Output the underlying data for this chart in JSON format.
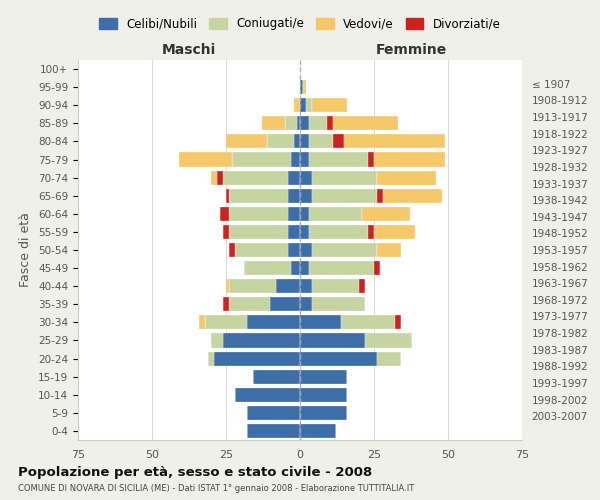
{
  "age_groups": [
    "0-4",
    "5-9",
    "10-14",
    "15-19",
    "20-24",
    "25-29",
    "30-34",
    "35-39",
    "40-44",
    "45-49",
    "50-54",
    "55-59",
    "60-64",
    "65-69",
    "70-74",
    "75-79",
    "80-84",
    "85-89",
    "90-94",
    "95-99",
    "100+"
  ],
  "birth_years": [
    "2003-2007",
    "1998-2002",
    "1993-1997",
    "1988-1992",
    "1983-1987",
    "1978-1982",
    "1973-1977",
    "1968-1972",
    "1963-1967",
    "1958-1962",
    "1953-1957",
    "1948-1952",
    "1943-1947",
    "1938-1942",
    "1933-1937",
    "1928-1932",
    "1923-1927",
    "1918-1922",
    "1913-1917",
    "1908-1912",
    "≤ 1907"
  ],
  "colors": {
    "celibi": "#3d6ea8",
    "coniugati": "#c5d4a0",
    "vedovi": "#f5c96a",
    "divorziati": "#cc2222"
  },
  "maschi": {
    "celibi": [
      18,
      18,
      22,
      16,
      29,
      26,
      18,
      10,
      8,
      3,
      4,
      4,
      4,
      4,
      4,
      3,
      2,
      1,
      0,
      0,
      0
    ],
    "coniugati": [
      0,
      0,
      0,
      0,
      2,
      4,
      14,
      14,
      16,
      16,
      18,
      20,
      20,
      20,
      22,
      20,
      9,
      4,
      0,
      0,
      0
    ],
    "vedovi": [
      0,
      0,
      0,
      0,
      0,
      0,
      2,
      0,
      1,
      0,
      0,
      0,
      0,
      0,
      2,
      18,
      14,
      8,
      2,
      0,
      0
    ],
    "divorziati": [
      0,
      0,
      0,
      0,
      0,
      0,
      0,
      2,
      0,
      0,
      2,
      2,
      3,
      1,
      2,
      0,
      0,
      0,
      0,
      0,
      0
    ]
  },
  "femmine": {
    "celibi": [
      12,
      16,
      16,
      16,
      26,
      22,
      14,
      4,
      4,
      3,
      4,
      3,
      3,
      4,
      4,
      3,
      3,
      3,
      2,
      1,
      0
    ],
    "coniugati": [
      0,
      0,
      0,
      0,
      8,
      16,
      18,
      18,
      16,
      22,
      22,
      20,
      18,
      22,
      22,
      20,
      8,
      6,
      2,
      0,
      0
    ],
    "vedovi": [
      0,
      0,
      0,
      0,
      0,
      0,
      0,
      0,
      0,
      0,
      8,
      14,
      16,
      20,
      20,
      24,
      34,
      22,
      12,
      1,
      0
    ],
    "divorziati": [
      0,
      0,
      0,
      0,
      0,
      0,
      2,
      0,
      2,
      2,
      0,
      2,
      0,
      2,
      0,
      2,
      4,
      2,
      0,
      0,
      0
    ]
  },
  "title": "Popolazione per età, sesso e stato civile - 2008",
  "subtitle": "COMUNE DI NOVARA DI SICILIA (ME) - Dati ISTAT 1° gennaio 2008 - Elaborazione TUTTITALIA.IT",
  "xlabel_left": "Maschi",
  "xlabel_right": "Femmine",
  "ylabel_left": "Fasce di età",
  "xlim": 75,
  "legend_labels": [
    "Celibi/Nubili",
    "Coniugati/e",
    "Vedovi/e",
    "Divorziati/e"
  ],
  "bg_color": "#f0f0eb",
  "plot_bg": "#ffffff",
  "grid_color": "#cccccc"
}
